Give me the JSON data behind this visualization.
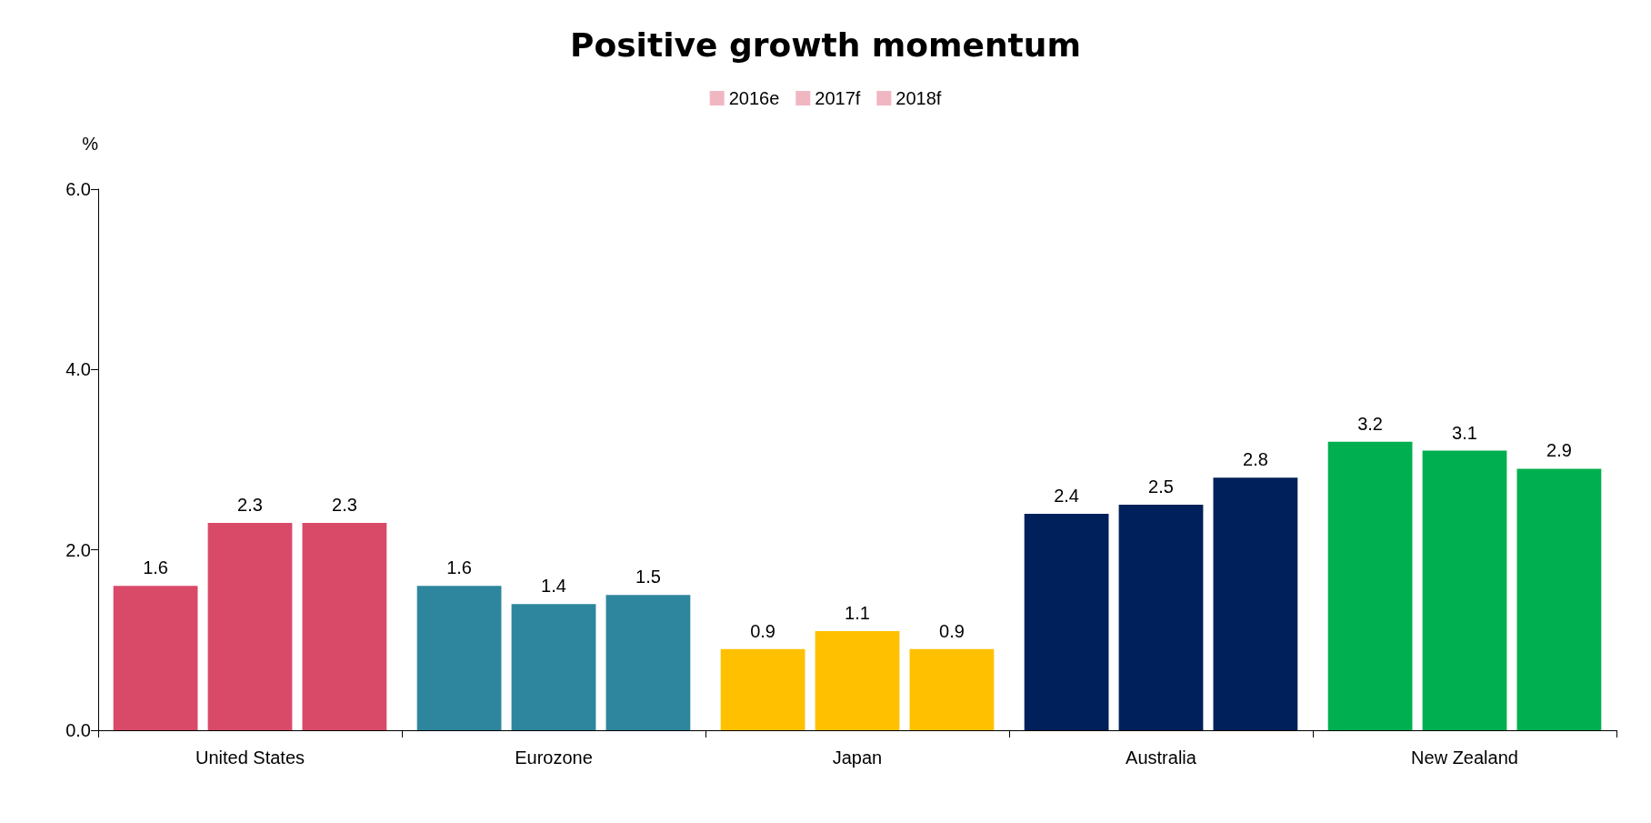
{
  "chart_data": {
    "type": "bar",
    "title": "Positive growth momentum",
    "ylabel": "%",
    "categories": [
      "United States",
      "Eurozone",
      "Japan",
      "Australia",
      "New Zealand"
    ],
    "series": [
      {
        "name": "2016e",
        "color": "#d94a68",
        "colors": [
          "#d94a68",
          "#2e869e",
          "#ffc000",
          "#00205b",
          "#00b050"
        ],
        "values": [
          1.6,
          1.6,
          0.9,
          2.4,
          3.2
        ]
      },
      {
        "name": "2017f",
        "color": "#d94a68",
        "colors": [
          "#d94a68",
          "#2e869e",
          "#ffc000",
          "#00205b",
          "#00b050"
        ],
        "values": [
          2.3,
          1.4,
          1.1,
          2.5,
          3.1
        ]
      },
      {
        "name": "2018f",
        "color": "#d94a68",
        "colors": [
          "#d94a68",
          "#2e869e",
          "#ffc000",
          "#00205b",
          "#00b050"
        ],
        "values": [
          2.3,
          1.5,
          0.9,
          2.8,
          2.9
        ]
      }
    ],
    "ylim": [
      0,
      6
    ],
    "yticks": [
      {
        "value": 0,
        "label": "0.0"
      },
      {
        "value": 2,
        "label": "2.0"
      },
      {
        "value": 4,
        "label": "4.0"
      },
      {
        "value": 6,
        "label": "6.0"
      }
    ],
    "data_labels": true,
    "grid": false,
    "legend": "top"
  }
}
